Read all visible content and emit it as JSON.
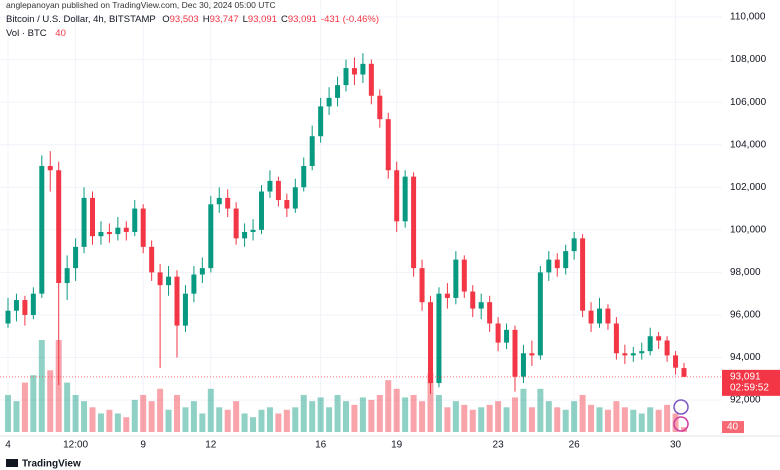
{
  "chart_data": {
    "type": "candlestick",
    "published": "anglepanoyan published on TradingView.com, Dec 30, 2024 05:00 UTC",
    "symbol": "Bitcoin / U.S. Dollar, 4h, BITSTAMP",
    "ohlc_legend": [
      {
        "key": "O",
        "value": "93,503"
      },
      {
        "key": "H",
        "value": "93,747"
      },
      {
        "key": "L",
        "value": "93,091"
      },
      {
        "key": "C",
        "value": "93,091"
      }
    ],
    "change": "-431 (-0.46%)",
    "volume_label": "Vol · BTC",
    "last_price_label": "93,091",
    "countdown": "02:59:52",
    "brand": "TradingView",
    "up_color": "#089981",
    "down_color": "#f23645",
    "grid": true,
    "categories": [
      "4",
      null,
      null,
      null,
      null,
      null,
      null,
      null,
      "12:00",
      null,
      null,
      null,
      null,
      null,
      null,
      null,
      "9",
      null,
      null,
      null,
      null,
      null,
      null,
      null,
      "12",
      null,
      null,
      null,
      null,
      null,
      null,
      null,
      null,
      null,
      null,
      null,
      null,
      "16",
      null,
      null,
      null,
      null,
      null,
      null,
      null,
      null,
      "19",
      null,
      null,
      null,
      null,
      null,
      null,
      null,
      null,
      null,
      null,
      null,
      "23",
      null,
      null,
      null,
      null,
      null,
      null,
      null,
      null,
      "26",
      null,
      null,
      null,
      null,
      null,
      null,
      null,
      null,
      null,
      null,
      null,
      "30",
      null
    ],
    "open": [
      95600,
      96200,
      96700,
      96000,
      97000,
      103000,
      102800,
      97500,
      98200,
      99200,
      101500,
      99700,
      99900,
      99800,
      100100,
      99900,
      101000,
      99200,
      98000,
      97400,
      97800,
      95500,
      97000,
      97900,
      98200,
      101200,
      101500,
      101000,
      99600,
      99900,
      100000,
      101800,
      102300,
      101400,
      101000,
      102000,
      103000,
      104400,
      105800,
      106200,
      106800,
      107600,
      107300,
      107800,
      106300,
      105200,
      102800,
      100400,
      102500,
      98200,
      96600,
      92800,
      97000,
      96800,
      98600,
      97100,
      96300,
      96600,
      95600,
      94700,
      95300,
      93100,
      94200,
      94100,
      98000,
      98600,
      98200,
      99000,
      99600,
      96200,
      95600,
      96300,
      95600,
      94200,
      94100,
      94200,
      94300,
      95000,
      94800,
      94100,
      93503
    ],
    "high": [
      96800,
      97000,
      96900,
      97300,
      103500,
      103700,
      103200,
      98800,
      99600,
      102000,
      101800,
      100400,
      100300,
      100600,
      100400,
      101400,
      101200,
      99500,
      98400,
      98300,
      98100,
      97400,
      98300,
      98700,
      101600,
      102000,
      101900,
      101300,
      100300,
      100500,
      102100,
      102800,
      102500,
      101700,
      102400,
      103400,
      104900,
      106200,
      106700,
      107200,
      108000,
      108100,
      108300,
      108000,
      106600,
      105500,
      103200,
      102800,
      102700,
      98600,
      96900,
      97300,
      97500,
      99000,
      98800,
      97400,
      97000,
      96900,
      95900,
      95600,
      95500,
      94600,
      94800,
      98300,
      99000,
      98900,
      99300,
      99900,
      99800,
      96600,
      96800,
      96500,
      95900,
      94600,
      94500,
      94700,
      95400,
      95200,
      95000,
      94300,
      93747
    ],
    "low": [
      95400,
      95700,
      95500,
      95800,
      96800,
      101800,
      92700,
      96700,
      97600,
      98900,
      99300,
      99300,
      99400,
      99500,
      99500,
      99700,
      98900,
      97600,
      93500,
      96900,
      94000,
      95200,
      96600,
      97500,
      98000,
      100800,
      100600,
      99300,
      99200,
      99500,
      99800,
      101500,
      101100,
      100600,
      100800,
      101800,
      102800,
      104100,
      105400,
      105800,
      106500,
      106800,
      106900,
      105900,
      104800,
      102400,
      99900,
      100100,
      97800,
      96200,
      92300,
      92600,
      96300,
      96500,
      96800,
      95900,
      95800,
      95200,
      94300,
      94400,
      92400,
      92800,
      93600,
      93900,
      97600,
      97800,
      97900,
      98600,
      95900,
      95200,
      95400,
      95300,
      93900,
      93700,
      93800,
      93900,
      94100,
      94400,
      93800,
      93200,
      93091
    ],
    "close": [
      96200,
      96700,
      96000,
      97000,
      103000,
      102800,
      97500,
      98200,
      99200,
      101500,
      99700,
      99900,
      99800,
      100100,
      99900,
      101000,
      99200,
      98000,
      97400,
      97800,
      95500,
      97000,
      97900,
      98200,
      101200,
      101500,
      101000,
      99600,
      99900,
      100000,
      101800,
      102300,
      101400,
      101000,
      102000,
      103000,
      104400,
      105800,
      106200,
      106800,
      107600,
      107300,
      107800,
      106300,
      105200,
      102800,
      100400,
      102500,
      98200,
      96600,
      92800,
      97000,
      96800,
      98600,
      97100,
      96300,
      96600,
      95600,
      94700,
      95300,
      93100,
      94200,
      94100,
      98000,
      98600,
      98200,
      99000,
      99600,
      96200,
      95600,
      96300,
      95600,
      94200,
      94100,
      94200,
      94300,
      95000,
      94800,
      94100,
      93522,
      93091
    ],
    "volume": [
      300,
      250,
      400,
      460,
      745,
      500,
      745,
      400,
      300,
      250,
      200,
      150,
      180,
      150,
      120,
      260,
      300,
      250,
      350,
      180,
      300,
      200,
      250,
      150,
      350,
      200,
      180,
      250,
      150,
      120,
      180,
      200,
      150,
      180,
      200,
      300,
      250,
      280,
      200,
      300,
      250,
      220,
      280,
      260,
      300,
      420,
      350,
      280,
      300,
      250,
      480,
      300,
      200,
      250,
      220,
      180,
      200,
      220,
      250,
      200,
      280,
      350,
      200,
      350,
      250,
      200,
      180,
      250,
      300,
      220,
      200,
      180,
      250,
      200,
      180,
      150,
      200,
      180,
      220,
      150,
      40
    ],
    "ylim": [
      90500,
      110800
    ],
    "vlim": [
      0,
      3500
    ],
    "yticks": [
      {
        "value": 92000,
        "label": "92,000"
      },
      {
        "value": 94000,
        "label": "94,000"
      },
      {
        "value": 96000,
        "label": "96,000"
      },
      {
        "value": 98000,
        "label": "98,000"
      },
      {
        "value": 100000,
        "label": "100,000"
      },
      {
        "value": 102000,
        "label": "102,000"
      },
      {
        "value": 104000,
        "label": "104,000"
      },
      {
        "value": 106000,
        "label": "106,000"
      },
      {
        "value": 108000,
        "label": "108,000"
      },
      {
        "value": 110000,
        "label": "110,000"
      }
    ]
  }
}
